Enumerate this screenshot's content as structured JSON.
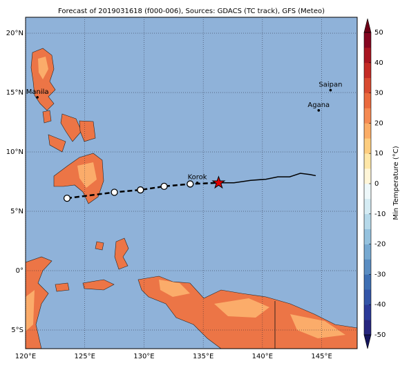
{
  "map": {
    "title": "Forecast of 2019031618 (f000-006), Sources: GDACS (TC track), GFS (Meteo)",
    "lonlim": [
      120,
      148
    ],
    "latlim": [
      -6.57,
      21.34
    ],
    "lonticks": [
      {
        "value": 120,
        "label": "120°E"
      },
      {
        "value": 125,
        "label": "125°E"
      },
      {
        "value": 130,
        "label": "130°E"
      },
      {
        "value": 135,
        "label": "135°E"
      },
      {
        "value": 140,
        "label": "140°E"
      },
      {
        "value": 145,
        "label": "145°E"
      }
    ],
    "latticks": [
      {
        "value": -5,
        "label": "5°S"
      },
      {
        "value": 0,
        "label": "0°"
      },
      {
        "value": 5,
        "label": "5°N"
      },
      {
        "value": 10,
        "label": "10°N"
      },
      {
        "value": 15,
        "label": "15°N"
      },
      {
        "value": 20,
        "label": "20°N"
      }
    ],
    "grid": true,
    "places": [
      {
        "name": "Manila",
        "lon": 121.0,
        "lat": 14.6
      },
      {
        "name": "Saipan",
        "lon": 145.75,
        "lat": 15.2
      },
      {
        "name": "Agana",
        "lon": 144.75,
        "lat": 13.5
      },
      {
        "name": "Korok",
        "lon": 134.5,
        "lat": 7.4
      }
    ],
    "forecast_track": {
      "lon": [
        123.5,
        127.5,
        129.7,
        131.7,
        133.9
      ],
      "lat": [
        6.1,
        6.6,
        6.8,
        7.1,
        7.3
      ]
    },
    "current": {
      "lon": 136.3,
      "lat": 7.4,
      "color": "#e00000"
    },
    "past_track": {
      "lon": [
        136.3,
        137.6,
        139.0,
        140.3,
        141.3,
        142.3,
        143.2,
        144.0,
        144.5
      ],
      "lat": [
        7.4,
        7.4,
        7.6,
        7.7,
        7.9,
        7.9,
        8.2,
        8.1,
        8.0
      ]
    },
    "colorbar": {
      "label": "Min Temperature (°C)",
      "lim": [
        -50,
        50
      ],
      "ticks": [
        -50,
        -40,
        -30,
        -20,
        -10,
        0,
        10,
        20,
        30,
        40,
        50
      ],
      "colors": [
        "#26267f",
        "#2b3a99",
        "#3355a8",
        "#3e6fb3",
        "#5a8dc2",
        "#77a9d1",
        "#95c2de",
        "#b6d9ea",
        "#d5ecf4",
        "#eef8fa",
        "#fff6d8",
        "#ffe7a8",
        "#fdcd7f",
        "#fbad67",
        "#f58a52",
        "#ea6a3e",
        "#d84a30",
        "#c42b25",
        "#a81521",
        "#840520"
      ],
      "under": "#14145c",
      "over": "#6e0016"
    }
  }
}
